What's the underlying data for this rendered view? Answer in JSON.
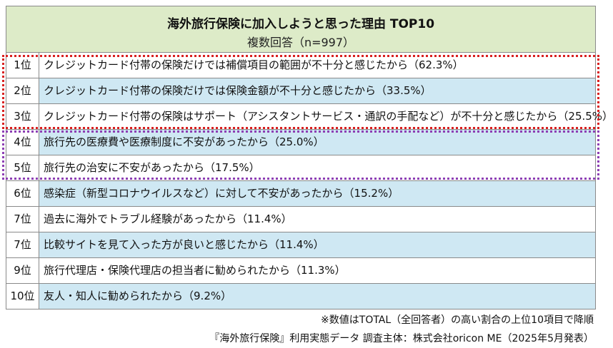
{
  "chart_data": {
    "type": "table",
    "title": "海外旅行保険に加入しようと思った理由 TOP10",
    "subtitle": "複数回答（n=997）",
    "rows": [
      {
        "rank": "1位",
        "text": "クレジットカード付帯の保険だけでは補償項目の範囲が不十分と感じたから（62.3%）",
        "value": 62.3
      },
      {
        "rank": "2位",
        "text": "クレジットカード付帯の保険だけでは保険金額が不十分と感じたから（33.5%）",
        "value": 33.5
      },
      {
        "rank": "3位",
        "text": "クレジットカード付帯の保険はサポート（アシスタントサービス・通訳の手配など）が不十分と感じたから（25.5%）",
        "value": 25.5
      },
      {
        "rank": "4位",
        "text": "旅行先の医療費や医療制度に不安があったから（25.0%）",
        "value": 25.0
      },
      {
        "rank": "5位",
        "text": "旅行先の治安に不安があったから（17.5%）",
        "value": 17.5
      },
      {
        "rank": "6位",
        "text": "感染症（新型コロナウイルスなど）に対して不安があったから（15.2%）",
        "value": 15.2
      },
      {
        "rank": "7位",
        "text": "過去に海外でトラブル経験があったから（11.4%）",
        "value": 11.4
      },
      {
        "rank": "7位",
        "text": "比較サイトを見て入った方が良いと感じたから（11.4%）",
        "value": 11.4
      },
      {
        "rank": "9位",
        "text": "旅行代理店・保険代理店の担当者に勧められたから（11.3%）",
        "value": 11.3
      },
      {
        "rank": "10位",
        "text": "友人・知人に勧められたから（9.2%）",
        "value": 9.2
      }
    ],
    "footnote": "※数値はTOTAL（全回答者）の高い割合の上位10項目で降順",
    "source": "『海外旅行保険』利用実態データ 調査主体：株式会社oricon ME（2025年5月発表）"
  },
  "colors": {
    "header_bg": "#ddebc8",
    "row_blue": "#cfe8f3",
    "row_white": "#ffffff",
    "highlight_red": "#d92020",
    "highlight_purple": "#8d3fb4"
  }
}
